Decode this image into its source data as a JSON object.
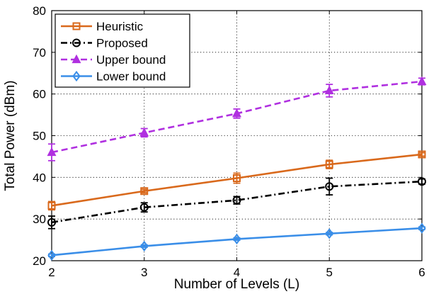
{
  "chart_data": {
    "type": "line",
    "title": "",
    "xlabel": "Number of Levels (L)",
    "ylabel": "Total Power (dBm)",
    "x": [
      2,
      3,
      4,
      5,
      6
    ],
    "xlim": [
      2,
      6
    ],
    "ylim": [
      20,
      80
    ],
    "xticks": [
      "2",
      "3",
      "4",
      "5",
      "6"
    ],
    "yticks": [
      "20",
      "30",
      "40",
      "50",
      "60",
      "70",
      "80"
    ],
    "grid": true,
    "legend_position": "top-left",
    "series": [
      {
        "name": "Heuristic",
        "values": [
          33.2,
          36.7,
          39.8,
          43.1,
          45.5
        ],
        "errors": [
          1.0,
          0.4,
          1.2,
          1.0,
          0.4
        ],
        "color": "#d9691c",
        "dash": "solid",
        "marker": "square"
      },
      {
        "name": "Proposed",
        "values": [
          29.2,
          32.8,
          34.5,
          37.8,
          39.0
        ],
        "errors": [
          1.5,
          1.1,
          0.9,
          2.0,
          0.6
        ],
        "color": "#000000",
        "dash": "dashdot",
        "marker": "circle"
      },
      {
        "name": "Upper bound",
        "values": [
          46.0,
          50.7,
          55.3,
          60.8,
          63.0
        ],
        "errors": [
          2.0,
          1.0,
          1.1,
          1.5,
          0.8
        ],
        "color": "#b030e0",
        "dash": "dashed",
        "marker": "triangle"
      },
      {
        "name": "Lower bound",
        "values": [
          21.3,
          23.5,
          25.2,
          26.5,
          27.8
        ],
        "errors": [
          0.3,
          0.3,
          0.3,
          0.3,
          0.3
        ],
        "color": "#3a8ee8",
        "dash": "solid",
        "marker": "diamond"
      }
    ]
  }
}
